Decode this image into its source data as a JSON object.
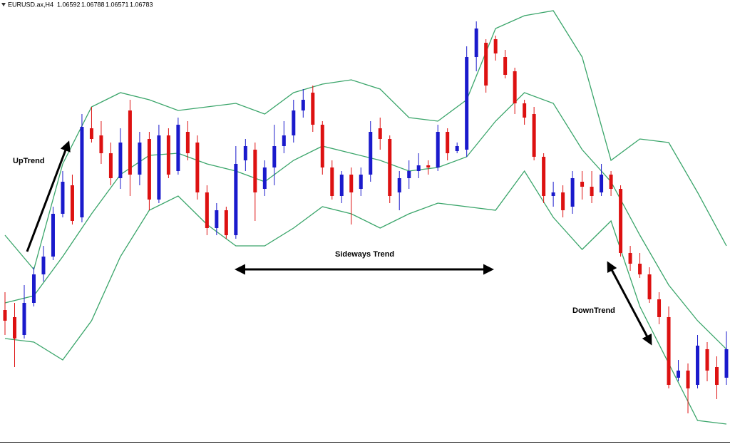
{
  "chart_data": {
    "type": "candlestick",
    "title": "EURUSD.ax,H4",
    "ohlc": [
      "1.06592",
      "1.06788",
      "1.06571",
      "1.06783"
    ],
    "annotations": [
      "UpTrend",
      "Sideways Trend",
      "DownTrend"
    ],
    "ylim": [
      1.0545,
      1.1168
    ],
    "up_color": "#1a1acc",
    "down_color": "#dd1111",
    "open": [
      1.0733,
      1.0723,
      1.0698,
      1.0743,
      1.0783,
      1.0808,
      1.0868,
      1.0908,
      1.0863,
      1.0988,
      1.0978,
      1.0953,
      1.0918,
      1.1013,
      1.0923,
      1.0973,
      1.0888,
      1.0978,
      1.0928,
      1.0983,
      1.0968,
      1.0898,
      1.0848,
      1.0873,
      1.0838,
      1.0943,
      1.0958,
      1.0903,
      1.0933,
      1.0963,
      1.0978,
      1.1013,
      1.1038,
      1.0993,
      1.0933,
      1.0893,
      1.0923,
      1.0903,
      1.0923,
      1.0988,
      1.0973,
      1.0898,
      1.0918,
      1.0928,
      1.0936,
      1.0933,
      1.0983,
      1.0956,
      1.0958,
      1.1088,
      1.1108,
      1.1113,
      1.1088,
      1.1068,
      1.1023,
      1.1008,
      1.0948,
      1.0893,
      1.0898,
      1.0878,
      1.0913,
      1.0906,
      1.0898,
      1.0923,
      1.0903,
      1.0813,
      1.0798,
      1.0783,
      1.0748,
      1.0723,
      1.0638,
      1.0648,
      1.0628,
      1.0678,
      1.0653,
      1.0638
    ],
    "high": [
      1.0758,
      1.0743,
      1.0768,
      1.0793,
      1.0823,
      1.0878,
      1.0928,
      1.0923,
      1.1008,
      1.1018,
      1.0998,
      1.0968,
      1.0988,
      1.1028,
      1.0983,
      1.0983,
      1.0993,
      1.0988,
      1.1003,
      1.0998,
      1.0978,
      1.0908,
      1.0883,
      1.0878,
      1.0963,
      1.0973,
      1.0968,
      1.0943,
      1.0993,
      1.0998,
      1.1028,
      1.1043,
      1.1048,
      1.0998,
      1.0943,
      1.0928,
      1.0933,
      1.0933,
      1.0998,
      1.1003,
      1.0978,
      1.0928,
      1.0943,
      1.0953,
      1.0943,
      1.0993,
      1.0988,
      1.0968,
      1.1103,
      1.1138,
      1.1113,
      1.1118,
      1.1098,
      1.1073,
      1.1028,
      1.1018,
      1.0953,
      1.0913,
      1.0908,
      1.0928,
      1.0928,
      1.0928,
      1.0938,
      1.0928,
      1.0908,
      1.0823,
      1.0813,
      1.0793,
      1.0758,
      1.0738,
      1.0663,
      1.0658,
      1.0698,
      1.0688,
      1.0668,
      1.0703
    ],
    "low": [
      1.0698,
      1.0653,
      1.0693,
      1.0738,
      1.0773,
      1.0803,
      1.0863,
      1.0853,
      1.0856,
      1.0968,
      1.0938,
      1.0908,
      1.0903,
      1.0893,
      1.0908,
      1.0873,
      1.0883,
      1.0918,
      1.0923,
      1.0943,
      1.0888,
      1.0838,
      1.0838,
      1.0833,
      1.0833,
      1.0928,
      1.0858,
      1.0893,
      1.0908,
      1.0953,
      1.0968,
      1.1003,
      1.0983,
      1.0923,
      1.0888,
      1.0883,
      1.0853,
      1.0893,
      1.0913,
      1.0958,
      1.0883,
      1.0873,
      1.0903,
      1.0918,
      1.0923,
      1.0928,
      1.0943,
      1.0953,
      1.0948,
      1.1068,
      1.1038,
      1.1083,
      1.1058,
      1.1008,
      1.0993,
      1.0943,
      1.0883,
      1.0878,
      1.0863,
      1.0868,
      1.0888,
      1.0883,
      1.0893,
      1.0893,
      1.0808,
      1.0788,
      1.0778,
      1.0743,
      1.0713,
      1.0623,
      1.0633,
      1.0588,
      1.0623,
      1.0633,
      1.0608,
      1.0628
    ],
    "close": [
      1.0718,
      1.0693,
      1.0743,
      1.0783,
      1.0808,
      1.0868,
      1.0913,
      1.0858,
      1.099,
      1.0973,
      1.0953,
      1.0918,
      1.0968,
      1.0923,
      1.0968,
      1.0888,
      1.0978,
      1.0923,
      1.0993,
      1.0953,
      1.0898,
      1.0848,
      1.0873,
      1.0838,
      1.0938,
      1.0963,
      1.0898,
      1.0933,
      1.0963,
      1.0978,
      1.1013,
      1.1028,
      1.0993,
      1.0933,
      1.0893,
      1.0923,
      1.0898,
      1.0923,
      1.0983,
      1.0973,
      1.0893,
      1.0918,
      1.0928,
      1.0936,
      1.0933,
      1.0983,
      1.0953,
      1.0963,
      1.1088,
      1.1128,
      1.1048,
      1.1093,
      1.1063,
      1.1023,
      1.1003,
      1.0948,
      1.0893,
      1.0898,
      1.0873,
      1.0918,
      1.0906,
      1.0893,
      1.0923,
      1.0903,
      1.0813,
      1.0798,
      1.0783,
      1.0748,
      1.0723,
      1.0628,
      1.0648,
      1.0623,
      1.0683,
      1.0648,
      1.0628,
      1.0678
    ],
    "bands": [
      {
        "color": "#3aa56a",
        "values": [
          1.0838,
          1.079,
          1.0938,
          1.1018,
          1.1038,
          1.1028,
          1.1013,
          1.1018,
          1.1023,
          1.1008,
          1.1038,
          1.105,
          1.1056,
          1.1043,
          1.1003,
          1.0998,
          1.1028,
          1.1128,
          1.1146,
          1.1153,
          1.1088,
          1.0943,
          1.0973,
          1.0968,
          1.0898,
          1.0823
        ]
      },
      {
        "color": "#3aa56a",
        "values": [
          1.0743,
          1.0753,
          1.0808,
          1.0868,
          1.0923,
          1.095,
          1.0953,
          1.0938,
          1.0928,
          1.0913,
          1.0943,
          1.0963,
          1.0953,
          1.0943,
          1.0928,
          1.0933,
          1.0948,
          1.0998,
          1.1038,
          1.1023,
          1.0958,
          1.0913,
          1.0838,
          1.0768,
          1.0718,
          1.0678
        ]
      },
      {
        "color": "#3aa56a",
        "values": [
          1.0693,
          1.0688,
          1.0663,
          1.0718,
          1.0808,
          1.0873,
          1.0893,
          1.0853,
          1.0823,
          1.0823,
          1.0848,
          1.0878,
          1.0868,
          1.0848,
          1.0868,
          1.0883,
          1.0878,
          1.0873,
          1.0928,
          1.0863,
          1.0818,
          1.0858,
          1.0738,
          1.0658,
          1.0578,
          1.0573
        ]
      }
    ]
  }
}
